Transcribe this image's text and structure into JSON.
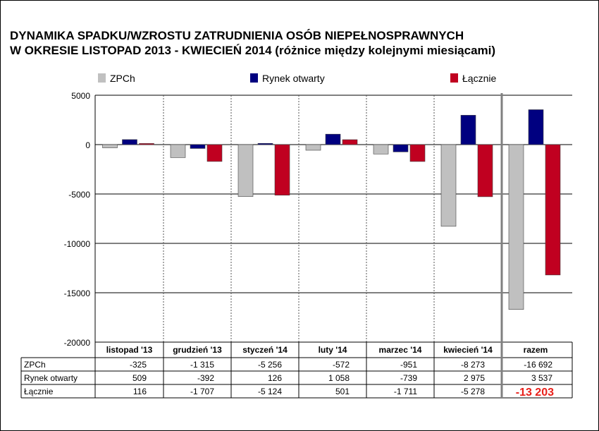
{
  "chart_data": {
    "type": "bar",
    "title_line1": "DYNAMIKA SPADKU/WZROSTU ZATRUDNIENIA OSÓB NIEPEŁNOSPRAWNYCH",
    "title_line2": "W OKRESIE LISTOPAD 2013 - KWIECIEŃ 2014 (różnice między kolejnymi miesiącami)",
    "categories": [
      "listopad '13",
      "grudzień '13",
      "styczeń '14",
      "luty '14",
      "marzec '14",
      "kwiecień '14",
      "razem"
    ],
    "series": [
      {
        "name": "ZPCh",
        "color": "#c0c0c0",
        "values": [
          -325,
          -1315,
          -5256,
          -572,
          -951,
          -8273,
          -16692
        ],
        "labels": [
          "-325",
          "-1 315",
          "-5 256",
          "-572",
          "-951",
          "-8 273",
          "-16 692"
        ]
      },
      {
        "name": "Rynek otwarty",
        "color": "#000080",
        "values": [
          509,
          -392,
          126,
          1058,
          -739,
          2975,
          3537
        ],
        "labels": [
          "509",
          "-392",
          "126",
          "1 058",
          "-739",
          "2 975",
          "3 537"
        ]
      },
      {
        "name": "Łącznie",
        "color": "#c00020",
        "values": [
          116,
          -1707,
          -5124,
          501,
          -1711,
          -5278,
          -13203
        ],
        "labels": [
          "116",
          "-1 707",
          "-5 124",
          "501",
          "-1 711",
          "-5 278",
          "-13 203"
        ]
      }
    ],
    "ylim": [
      -20000,
      5000
    ],
    "yticks": [
      5000,
      0,
      -5000,
      -10000,
      -15000,
      -20000
    ],
    "ytick_labels": [
      "5000",
      "0",
      "-5000",
      "-10000",
      "-15000",
      "-20000"
    ],
    "highlight_color": "#e8201a",
    "legend_position": "top",
    "grid": "horizontal major lines, dashed vertical category separators"
  }
}
